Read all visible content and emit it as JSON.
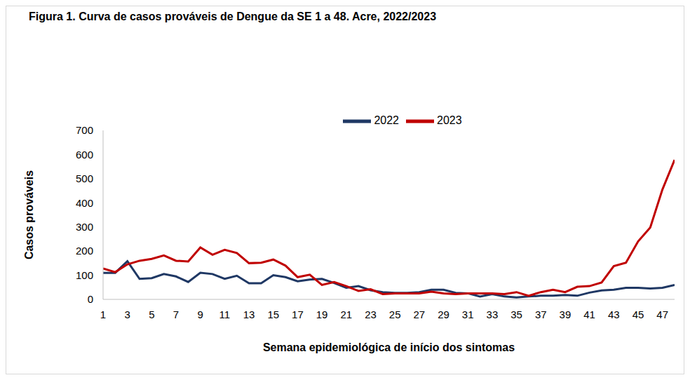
{
  "chart_data": {
    "type": "line",
    "title": "Figura 1. Curva de casos prováveis de Dengue da SE 1 a 48. Acre, 2022/2023",
    "x_label": "Semana epidemiológica de início dos sintomas",
    "y_label": "Casos prováveis",
    "x": [
      1,
      2,
      3,
      4,
      5,
      6,
      7,
      8,
      9,
      10,
      11,
      12,
      13,
      14,
      15,
      16,
      17,
      18,
      19,
      20,
      21,
      22,
      23,
      24,
      25,
      26,
      27,
      28,
      29,
      30,
      31,
      32,
      33,
      34,
      35,
      36,
      37,
      38,
      39,
      40,
      41,
      42,
      43,
      44,
      45,
      46,
      47,
      48
    ],
    "xlim": [
      1,
      48
    ],
    "xticks": [
      1,
      3,
      5,
      7,
      9,
      11,
      13,
      15,
      17,
      19,
      21,
      23,
      25,
      27,
      29,
      31,
      33,
      35,
      37,
      39,
      41,
      43,
      45,
      47
    ],
    "ylim": [
      0,
      700
    ],
    "yticks": [
      0,
      100,
      200,
      300,
      400,
      500,
      600,
      700
    ],
    "grid": false,
    "legend": "top",
    "series": [
      {
        "name": "2022",
        "color": "#1f3864",
        "values": [
          110,
          110,
          158,
          85,
          88,
          105,
          95,
          72,
          110,
          105,
          85,
          98,
          67,
          67,
          100,
          92,
          75,
          82,
          85,
          68,
          48,
          55,
          38,
          30,
          27,
          27,
          30,
          40,
          40,
          27,
          25,
          12,
          22,
          12,
          8,
          12,
          15,
          15,
          18,
          15,
          28,
          37,
          40,
          48,
          48,
          45,
          48,
          60
        ]
      },
      {
        "name": "2023",
        "color": "#c00000",
        "values": [
          128,
          113,
          145,
          160,
          168,
          182,
          160,
          157,
          215,
          185,
          205,
          192,
          150,
          152,
          165,
          140,
          92,
          102,
          60,
          72,
          55,
          35,
          42,
          22,
          25,
          25,
          25,
          32,
          25,
          22,
          25,
          25,
          25,
          22,
          30,
          15,
          30,
          40,
          30,
          52,
          55,
          70,
          138,
          152,
          240,
          298,
          455,
          578
        ]
      }
    ]
  }
}
